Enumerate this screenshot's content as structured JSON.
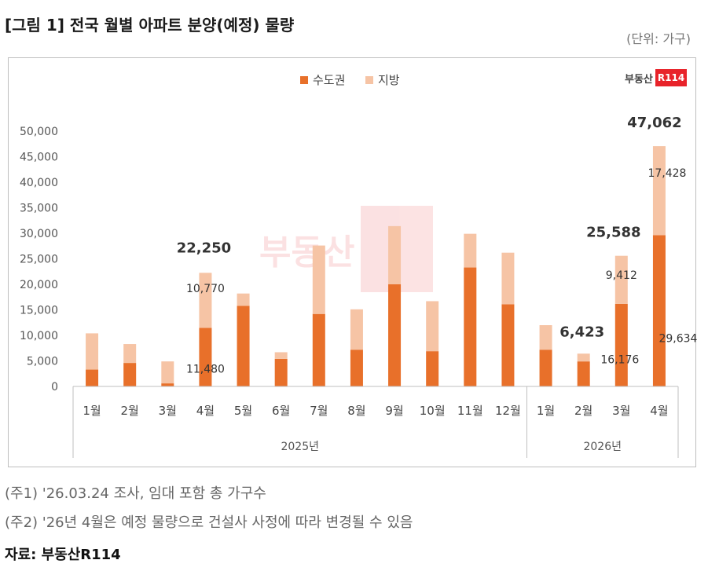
{
  "header": {
    "title": "[그림 1] 전국 월별 아파트 분양(예정) 물량",
    "unit": "(단위: 가구)"
  },
  "logo": {
    "text": "부동산",
    "box": "R114"
  },
  "chart_data": {
    "type": "bar",
    "stacked": true,
    "title": "[그림 1] 전국 월별 아파트 분양(예정) 물량",
    "categories": [
      "1월",
      "2월",
      "3월",
      "4월",
      "5월",
      "6월",
      "7월",
      "8월",
      "9월",
      "10월",
      "11월",
      "12월",
      "1월",
      "2월",
      "3월",
      "4월"
    ],
    "groups": [
      {
        "label": "2025년",
        "count": 12
      },
      {
        "label": "2026년",
        "count": 4
      }
    ],
    "series": [
      {
        "name": "수도권",
        "color": "#e8702a",
        "values": [
          3300,
          4600,
          600,
          11480,
          15800,
          5400,
          14200,
          7200,
          20000,
          6900,
          23300,
          16100,
          7200,
          4900,
          16176,
          29634
        ]
      },
      {
        "name": "지방",
        "color": "#f6c4a5",
        "values": [
          7100,
          3700,
          4300,
          10770,
          2400,
          1300,
          13400,
          7900,
          11400,
          9800,
          6600,
          10100,
          4800,
          1523,
          9412,
          17428
        ]
      }
    ],
    "totals_shown": [
      {
        "index": 3,
        "label": "22,250"
      },
      {
        "index": 13,
        "label": "6,423"
      },
      {
        "index": 14,
        "label": "25,588"
      },
      {
        "index": 15,
        "label": "47,062"
      }
    ],
    "segment_labels": [
      {
        "index": 3,
        "series": 0,
        "label": "11,480"
      },
      {
        "index": 3,
        "series": 1,
        "label": "10,770"
      },
      {
        "index": 14,
        "series": 0,
        "label": "16,176"
      },
      {
        "index": 14,
        "series": 1,
        "label": "9,412"
      },
      {
        "index": 15,
        "series": 0,
        "label": "29,634"
      },
      {
        "index": 15,
        "series": 1,
        "label": "17,428"
      }
    ],
    "yticks": [
      "0",
      "5,000",
      "10,000",
      "15,000",
      "20,000",
      "25,000",
      "30,000",
      "35,000",
      "40,000",
      "45,000",
      "50,000"
    ],
    "ylim": [
      0,
      50000
    ],
    "legend_position": "top-center"
  },
  "notes": {
    "note1": "(주1) '26.03.24 조사, 임대 포함 총 가구수",
    "note2": "(주2) '26년 4월은 예정 물량으로 건설사 사정에 따라 변경될 수 있음",
    "source": "자료: 부동산R114"
  }
}
